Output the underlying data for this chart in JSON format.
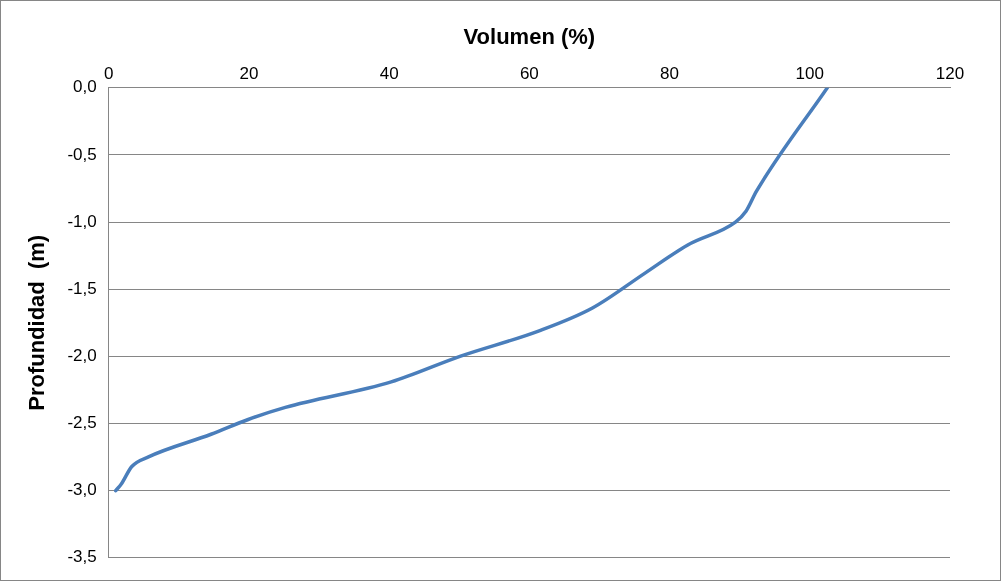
{
  "chart_data": {
    "type": "line",
    "xlabel": "Volumen (%)",
    "ylabel": "Profundidad  (m)",
    "xlim": [
      0,
      120
    ],
    "xticks": [
      0,
      20,
      40,
      60,
      80,
      100,
      120
    ],
    "ylim": [
      -3.5,
      0
    ],
    "yticks": [
      {
        "value": 0,
        "label": "0,0"
      },
      {
        "value": -0.5,
        "label": "-0,5"
      },
      {
        "value": -1,
        "label": "-1,0"
      },
      {
        "value": -1.5,
        "label": "-1,5"
      },
      {
        "value": -2,
        "label": "-2,0"
      },
      {
        "value": -2.5,
        "label": "-2,5"
      },
      {
        "value": -3,
        "label": "-3,0"
      },
      {
        "value": -3.5,
        "label": "-3,5"
      }
    ],
    "grid": "y",
    "legend": false,
    "marker": "none",
    "line_style": "solid",
    "series": [
      {
        "color": "#4a7ebb",
        "x": [
          1,
          1.8,
          3.3,
          5.6,
          14.6,
          19.9,
          25.2,
          40.3,
          50.1,
          61.4,
          69,
          76.5,
          82.6,
          89.4,
          90.9,
          92.4,
          102.5
        ],
        "values": [
          -3.0,
          -2.95,
          -2.82,
          -2.75,
          -2.58,
          -2.47,
          -2.38,
          -2.19,
          -2.0,
          -1.81,
          -1.64,
          -1.38,
          -1.17,
          -1.0,
          -0.92,
          -0.77,
          0
        ]
      }
    ]
  }
}
